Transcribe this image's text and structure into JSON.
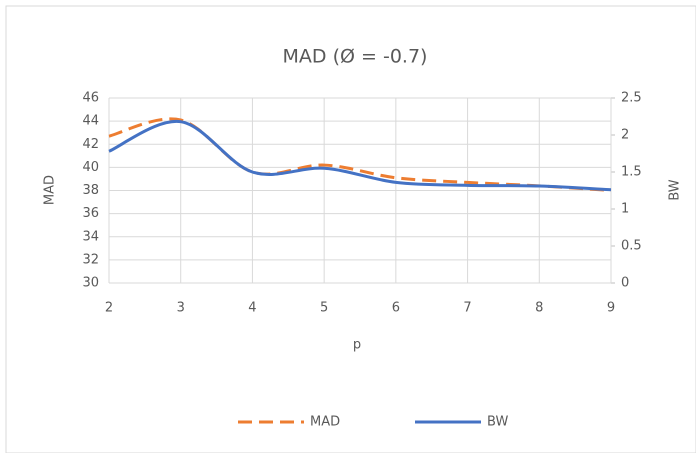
{
  "chart_data": {
    "type": "line",
    "title": "MAD (Ø = -0.7)",
    "x_label": "p",
    "y_label": "MAD",
    "y2_label": "BW",
    "x": [
      2,
      3,
      4,
      5,
      6,
      7,
      8,
      9
    ],
    "xlim": [
      2,
      9
    ],
    "xticks": [
      2,
      3,
      4,
      5,
      6,
      7,
      8,
      9
    ],
    "ylim": [
      30,
      46
    ],
    "yticks": [
      30,
      32,
      34,
      36,
      38,
      40,
      42,
      44,
      46
    ],
    "y2lim": [
      0,
      2.5
    ],
    "y2ticks": [
      0,
      0.5,
      1,
      1.5,
      2,
      2.5
    ],
    "grid": true,
    "legend": "bottom",
    "series": [
      {
        "name": "MAD",
        "color": "#ed7d31",
        "dashed": true,
        "values": [
          42.7,
          44.1,
          39.6,
          40.2,
          39.1,
          38.7,
          38.4,
          38.0
        ]
      },
      {
        "name": "BW",
        "color": "#4472c4",
        "axis": "y2",
        "values": [
          1.78,
          2.18,
          1.5,
          1.55,
          1.36,
          1.32,
          1.31,
          1.26
        ]
      }
    ]
  }
}
